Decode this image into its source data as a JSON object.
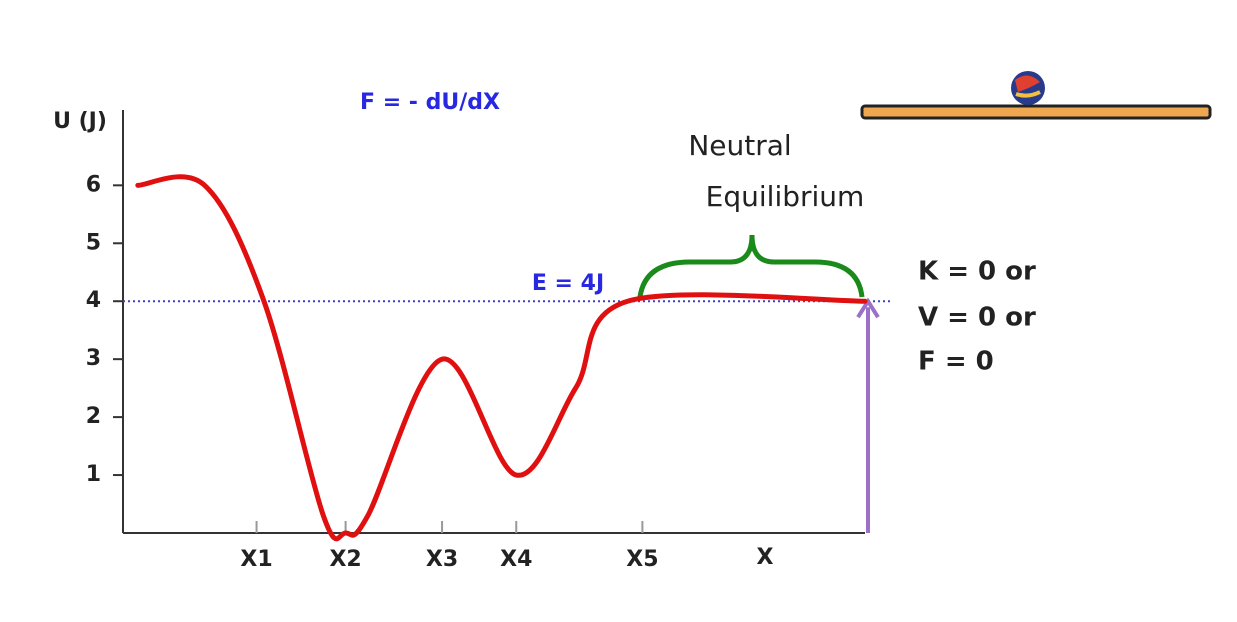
{
  "chart_data": {
    "type": "line",
    "title": "F = - dU/dX",
    "y_label": "U (J)",
    "x_label": "X",
    "energy": 4,
    "energy_label": "E = 4J",
    "annotation": [
      "Neutral",
      "Equilibrium"
    ],
    "conditions": [
      "K = 0 or",
      "V = 0 or",
      "F = 0"
    ],
    "x": [
      2,
      11,
      19,
      27,
      30,
      33,
      43,
      53,
      61,
      68,
      100
    ],
    "series": [
      {
        "color": "#e01010",
        "values": [
          6,
          6,
          4,
          0.3,
          0,
          0.3,
          3,
          1,
          2.5,
          4,
          4
        ]
      }
    ],
    "xlim": [
      0,
      100
    ],
    "ylim": [
      0,
      7.3
    ],
    "xticks": [
      {
        "value": 18,
        "label": "X1"
      },
      {
        "value": 30,
        "label": "X2"
      },
      {
        "value": 43,
        "label": "X3"
      },
      {
        "value": 53,
        "label": "X4"
      },
      {
        "value": 70,
        "label": "X5"
      }
    ],
    "yticks": [
      1,
      2,
      3,
      4,
      5,
      6
    ]
  }
}
